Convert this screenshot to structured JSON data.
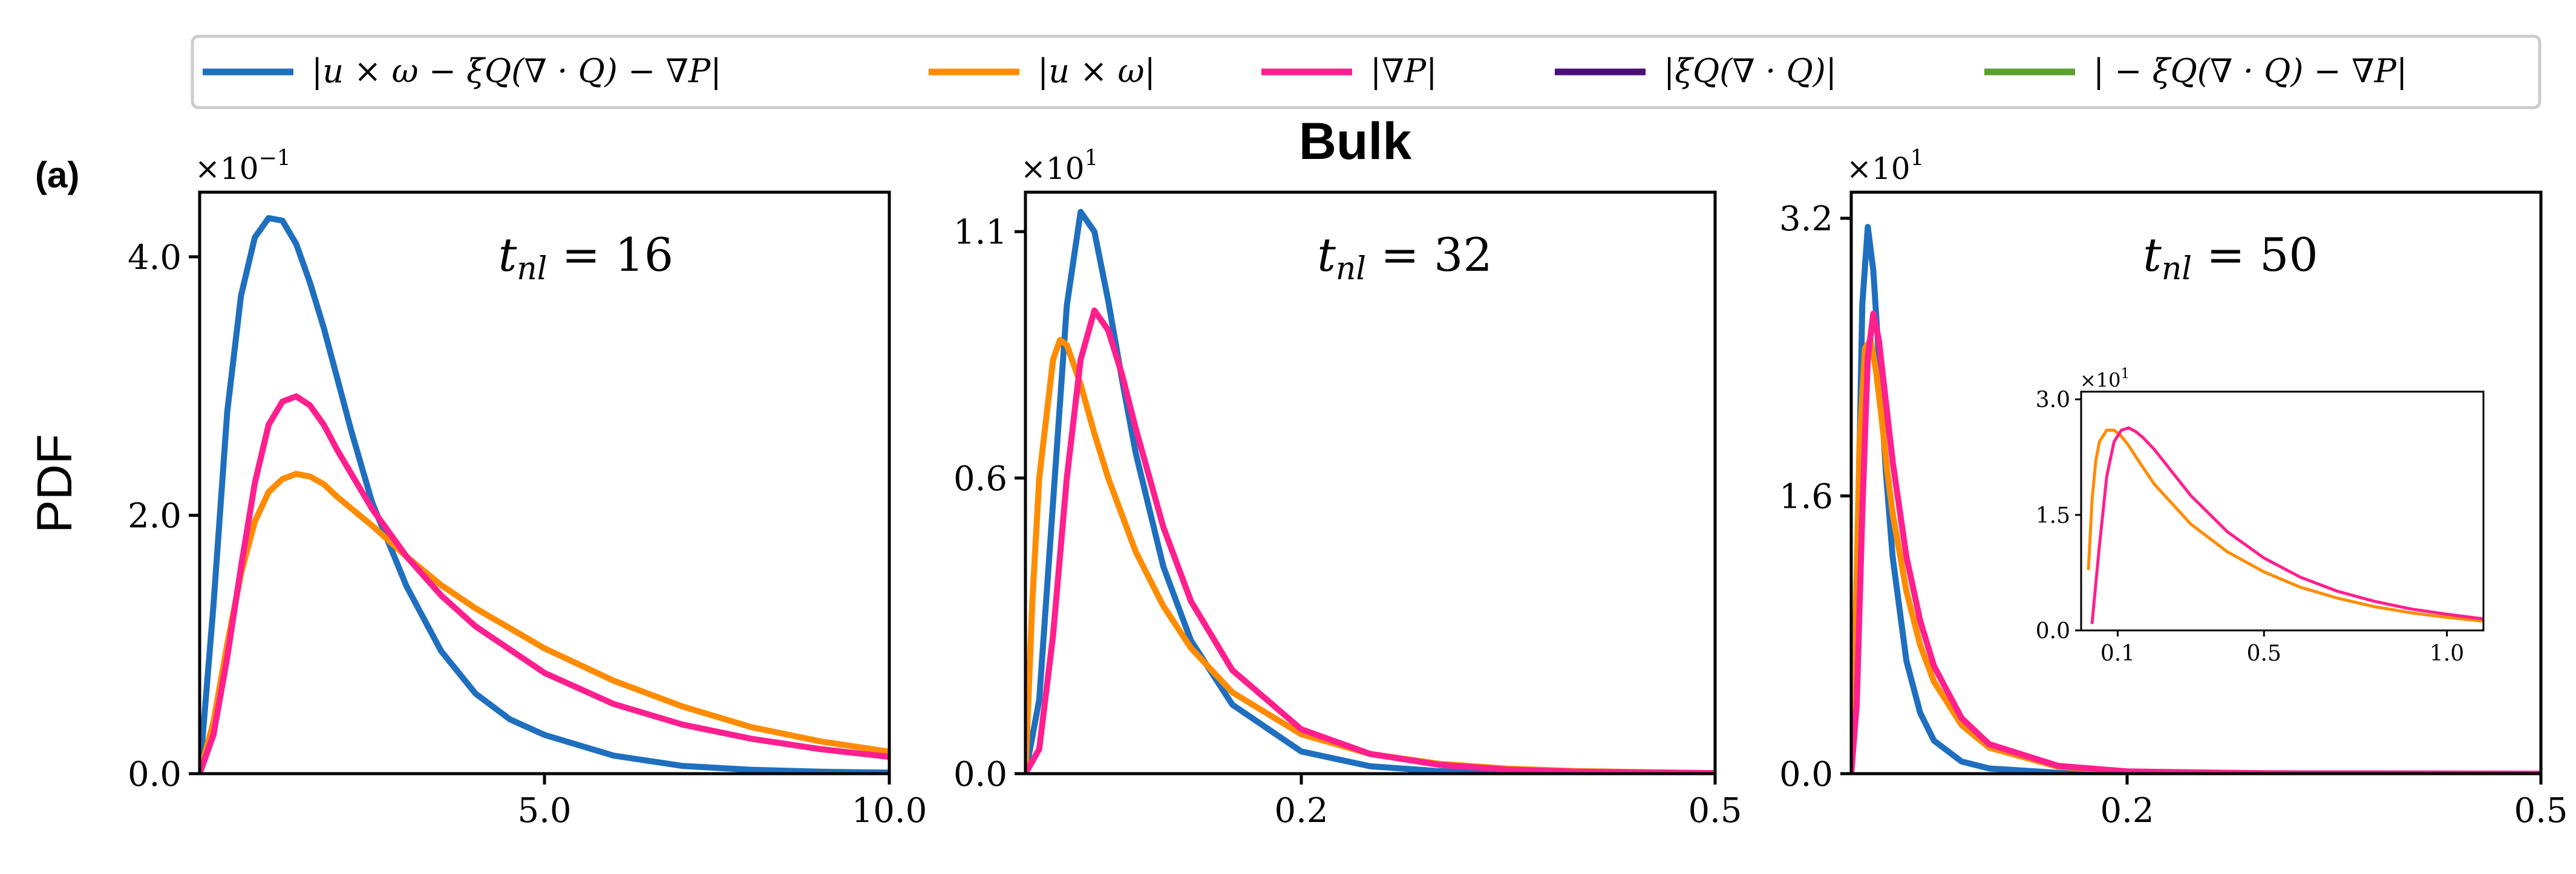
{
  "figure": {
    "panel_label": "(a)",
    "title": "Bulk",
    "ylabel": "PDF"
  },
  "legend": {
    "items": [
      {
        "label": "|u × ω − ξQ(∇ · Q) − ∇P|",
        "color": "#1f6fbf"
      },
      {
        "label": "|u × ω|",
        "color": "#ff8c00"
      },
      {
        "label": "|∇P|",
        "color": "#ff1f8e"
      },
      {
        "label": "|ξQ(∇ · Q)|",
        "color": "#4b0f7a"
      },
      {
        "label": "| − ξQ(∇ · Q) − ∇P|",
        "color": "#5aa02c"
      }
    ]
  },
  "colors": {
    "total": "#1f6fbf",
    "advection": "#ff8c00",
    "pressure": "#ff1f8e",
    "active": "#4b0f7a",
    "combined": "#5aa02c"
  },
  "chart_data": [
    {
      "type": "line",
      "annotation": "t_nl = 16",
      "xlabel": "",
      "ylabel": "PDF",
      "xlim": [
        0,
        10
      ],
      "ylim": [
        0,
        0.45
      ],
      "xticks": [
        5.0,
        10.0
      ],
      "xtick_labels": [
        "5.0",
        "10.0"
      ],
      "yticks": [
        0.0,
        0.2,
        0.4
      ],
      "ytick_labels": [
        "0.0",
        "2.0",
        "4.0"
      ],
      "y_multiplier": "×10^-1",
      "series": [
        {
          "name": "|u × ω − ξQ(∇ · Q) − ∇P|",
          "color_key": "total",
          "x": [
            0,
            0.2,
            0.4,
            0.6,
            0.8,
            1.0,
            1.2,
            1.4,
            1.6,
            1.8,
            2.0,
            2.2,
            2.5,
            3.0,
            3.5,
            4.0,
            4.5,
            5.0,
            6.0,
            7.0,
            8.0,
            9.0,
            10.0
          ],
          "y": [
            0,
            0.13,
            0.28,
            0.37,
            0.415,
            0.43,
            0.428,
            0.41,
            0.38,
            0.345,
            0.305,
            0.265,
            0.21,
            0.145,
            0.095,
            0.062,
            0.042,
            0.03,
            0.014,
            0.006,
            0.003,
            0.0015,
            0.0008
          ]
        },
        {
          "name": "|u × ω|",
          "color_key": "advection",
          "x": [
            0,
            0.2,
            0.4,
            0.6,
            0.8,
            1.0,
            1.2,
            1.4,
            1.6,
            1.8,
            2.0,
            2.5,
            3.0,
            3.5,
            4.0,
            5.0,
            6.0,
            7.0,
            8.0,
            9.0,
            10.0
          ],
          "y": [
            0,
            0.04,
            0.1,
            0.155,
            0.195,
            0.218,
            0.228,
            0.232,
            0.23,
            0.224,
            0.214,
            0.192,
            0.168,
            0.146,
            0.128,
            0.097,
            0.072,
            0.052,
            0.036,
            0.025,
            0.017
          ]
        },
        {
          "name": "|∇P|",
          "color_key": "pressure",
          "x": [
            0,
            0.2,
            0.4,
            0.6,
            0.8,
            1.0,
            1.2,
            1.4,
            1.6,
            1.8,
            2.0,
            2.5,
            3.0,
            3.5,
            4.0,
            5.0,
            6.0,
            7.0,
            8.0,
            9.0,
            10.0
          ],
          "y": [
            0,
            0.03,
            0.09,
            0.16,
            0.225,
            0.27,
            0.288,
            0.292,
            0.285,
            0.27,
            0.25,
            0.205,
            0.168,
            0.138,
            0.114,
            0.078,
            0.054,
            0.038,
            0.027,
            0.019,
            0.013
          ]
        }
      ]
    },
    {
      "type": "line",
      "annotation": "t_nl = 32",
      "xlabel": "",
      "ylabel": "",
      "xlim": [
        0,
        0.5
      ],
      "ylim": [
        0,
        11.8
      ],
      "xticks": [
        0.2,
        0.5
      ],
      "xtick_labels": [
        "0.2",
        "0.5"
      ],
      "yticks": [
        0,
        6.0,
        11.0
      ],
      "ytick_labels": [
        "0.0",
        "0.6",
        "1.1"
      ],
      "y_multiplier": "×10^1",
      "series": [
        {
          "name": "|u × ω − ξQ(∇ · Q) − ∇P|",
          "color_key": "total",
          "x": [
            0,
            0.01,
            0.02,
            0.03,
            0.04,
            0.05,
            0.06,
            0.07,
            0.08,
            0.1,
            0.12,
            0.15,
            0.2,
            0.25,
            0.3,
            0.35,
            0.4,
            0.5
          ],
          "y": [
            0,
            1.5,
            5.5,
            9.5,
            11.4,
            11.0,
            9.6,
            8.0,
            6.5,
            4.2,
            2.7,
            1.4,
            0.45,
            0.15,
            0.05,
            0.02,
            0.01,
            0.0
          ]
        },
        {
          "name": "|u × ω|",
          "color_key": "advection",
          "x": [
            0,
            0.005,
            0.01,
            0.02,
            0.025,
            0.03,
            0.04,
            0.05,
            0.06,
            0.08,
            0.1,
            0.12,
            0.15,
            0.2,
            0.25,
            0.3,
            0.35,
            0.4,
            0.5
          ],
          "y": [
            0,
            3.5,
            6.0,
            8.4,
            8.8,
            8.7,
            7.9,
            6.9,
            6.0,
            4.5,
            3.4,
            2.55,
            1.65,
            0.8,
            0.4,
            0.2,
            0.1,
            0.05,
            0.01
          ]
        },
        {
          "name": "|∇P|",
          "color_key": "pressure",
          "x": [
            0,
            0.01,
            0.02,
            0.03,
            0.04,
            0.05,
            0.06,
            0.07,
            0.08,
            0.1,
            0.12,
            0.15,
            0.2,
            0.25,
            0.3,
            0.35,
            0.4,
            0.5
          ],
          "y": [
            0,
            0.5,
            2.8,
            6.0,
            8.4,
            9.4,
            9.0,
            8.1,
            7.0,
            5.0,
            3.5,
            2.1,
            0.9,
            0.4,
            0.18,
            0.08,
            0.04,
            0.01
          ]
        }
      ]
    },
    {
      "type": "line",
      "annotation": "t_nl = 50",
      "xlabel": "",
      "ylabel": "",
      "xlim": [
        0,
        0.5
      ],
      "ylim": [
        0,
        33.5
      ],
      "xticks": [
        0.2,
        0.5
      ],
      "xtick_labels": [
        "0.2",
        "0.5"
      ],
      "yticks": [
        0,
        16.0,
        32.0
      ],
      "ytick_labels": [
        "0.0",
        "1.6",
        "3.2"
      ],
      "y_multiplier": "×10^1",
      "series": [
        {
          "name": "|u × ω − ξQ(∇ · Q) − ∇P|",
          "color_key": "total",
          "x": [
            0,
            0.004,
            0.008,
            0.012,
            0.016,
            0.02,
            0.025,
            0.03,
            0.04,
            0.05,
            0.06,
            0.08,
            0.1,
            0.15,
            0.2,
            0.3,
            0.5
          ],
          "y": [
            0,
            10,
            27,
            31.5,
            29,
            24,
            17.5,
            12.5,
            6.5,
            3.5,
            1.9,
            0.7,
            0.3,
            0.05,
            0.01,
            0.0,
            0.0
          ]
        },
        {
          "name": "|u × ω|",
          "color_key": "advection",
          "x": [
            0,
            0.003,
            0.006,
            0.01,
            0.014,
            0.018,
            0.022,
            0.026,
            0.03,
            0.04,
            0.05,
            0.06,
            0.08,
            0.1,
            0.15,
            0.2,
            0.3,
            0.5
          ],
          "y": [
            0,
            8,
            19,
            24.5,
            25.0,
            23.2,
            20.5,
            17.5,
            15.0,
            10.5,
            7.4,
            5.3,
            2.8,
            1.5,
            0.4,
            0.12,
            0.02,
            0.0
          ]
        },
        {
          "name": "|∇P|",
          "color_key": "pressure",
          "x": [
            0,
            0.004,
            0.008,
            0.012,
            0.016,
            0.02,
            0.025,
            0.03,
            0.04,
            0.05,
            0.06,
            0.08,
            0.1,
            0.15,
            0.2,
            0.3,
            0.5
          ],
          "y": [
            0,
            4,
            15,
            24,
            26.5,
            25,
            21.5,
            18,
            12.5,
            8.8,
            6.2,
            3.2,
            1.7,
            0.45,
            0.13,
            0.02,
            0.0
          ]
        }
      ],
      "inset": {
        "type": "line",
        "xlim": [
          0,
          1.1
        ],
        "ylim": [
          0,
          31
        ],
        "xticks": [
          0.1,
          0.5,
          1.0
        ],
        "xtick_labels": [
          "0.1",
          "0.5",
          "1.0"
        ],
        "yticks": [
          0,
          15,
          30
        ],
        "ytick_labels": [
          "0.0",
          "1.5",
          "3.0"
        ],
        "y_multiplier": "×10^1",
        "series": [
          {
            "name": "|u × ω|",
            "color_key": "advection",
            "x": [
              0.02,
              0.03,
              0.04,
              0.05,
              0.07,
              0.09,
              0.11,
              0.13,
              0.16,
              0.2,
              0.3,
              0.4,
              0.5,
              0.6,
              0.7,
              0.8,
              0.9,
              1.0,
              1.1
            ],
            "y": [
              8,
              17,
              22,
              24.5,
              26,
              26,
              25.2,
              24,
              21.8,
              19,
              13.8,
              10.2,
              7.6,
              5.6,
              4.2,
              3.1,
              2.3,
              1.7,
              1.2
            ]
          },
          {
            "name": "|∇P|",
            "color_key": "pressure",
            "x": [
              0.03,
              0.05,
              0.07,
              0.09,
              0.11,
              0.13,
              0.15,
              0.17,
              0.2,
              0.3,
              0.4,
              0.5,
              0.6,
              0.7,
              0.8,
              0.9,
              1.0,
              1.1
            ],
            "y": [
              1,
              11,
              20,
              24.5,
              26,
              26.3,
              25.8,
              25,
              23.5,
              17.5,
              12.8,
              9.4,
              6.9,
              5.1,
              3.8,
              2.8,
              2.1,
              1.5
            ]
          }
        ]
      }
    }
  ]
}
